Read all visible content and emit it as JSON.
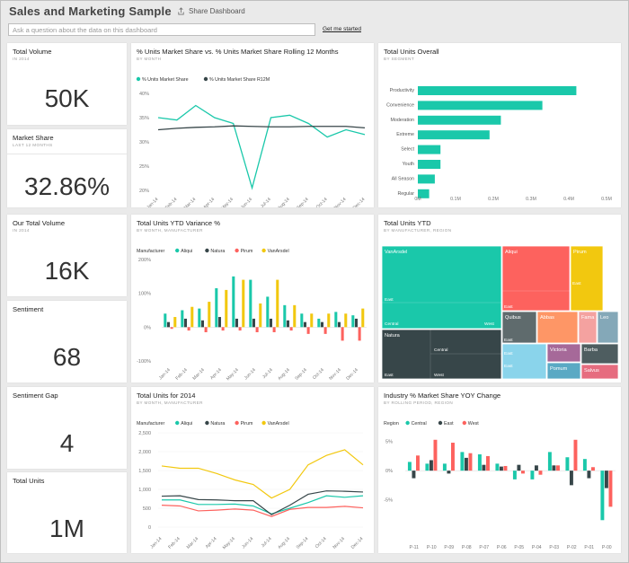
{
  "header": {
    "title": "Sales and Marketing Sample",
    "share_label": "Share Dashboard",
    "qa_placeholder": "Ask a question about the data on this dashboard",
    "get_started": "Get me started"
  },
  "colors": {
    "teal": "#1ac8aa",
    "dark": "#374649",
    "red": "#fd625e",
    "yellow": "#f2c80f",
    "blue": "#8ad4eb",
    "orange": "#fe9666",
    "purple": "#a66999",
    "grey": "#5f6b6d"
  },
  "kpi": {
    "total_volume": {
      "title": "Total Volume",
      "subtitle": "IN 2014",
      "value": "50K"
    },
    "market_share": {
      "title": "Market Share",
      "subtitle": "LAST 12 MONTHS",
      "value": "32.86%"
    },
    "our_total_volume": {
      "title": "Our Total Volume",
      "subtitle": "IN 2014",
      "value": "16K"
    },
    "sentiment": {
      "title": "Sentiment",
      "value": "68"
    },
    "sentiment_gap": {
      "title": "Sentiment Gap",
      "value": "4"
    },
    "total_units": {
      "title": "Total Units",
      "value": "1M"
    }
  },
  "tiles": {
    "line1": {
      "title": "% Units Market Share vs. % Units Market Share Rolling 12 Months",
      "subtitle": "BY MONTH"
    },
    "bar_overall": {
      "title": "Total Units Overall",
      "subtitle": "BY SEGMENT"
    },
    "ytd_var": {
      "title": "Total Units YTD Variance %",
      "subtitle": "BY MONTH, MANUFACTURER"
    },
    "treemap": {
      "title": "Total Units YTD",
      "subtitle": "BY MANUFACTURER, REGION"
    },
    "units2014": {
      "title": "Total Units for 2014",
      "subtitle": "BY MONTH, MANUFACTURER"
    },
    "yoy": {
      "title": "Industry % Market Share YOY Change",
      "subtitle": "BY ROLLING PERIOD, REGION"
    }
  },
  "chart_data": [
    {
      "id": "line1",
      "type": "line",
      "categories": [
        "Jan-14",
        "Feb-14",
        "Mar-14",
        "Apr-14",
        "May-14",
        "Jun-14",
        "Jul-14",
        "Aug-14",
        "Sep-14",
        "Oct-14",
        "Nov-14",
        "Dec-14"
      ],
      "series": [
        {
          "name": "% Units Market Share",
          "color": "#1ac8aa",
          "values": [
            35,
            34.5,
            37.5,
            35,
            33.8,
            20.5,
            35,
            35.5,
            33.8,
            31,
            32.5,
            31.5
          ]
        },
        {
          "name": "% Units Market Share R12M",
          "color": "#374649",
          "values": [
            32.5,
            32.8,
            33,
            33.1,
            33.3,
            33.2,
            33.1,
            33.1,
            33.2,
            33.2,
            33.2,
            32.9
          ]
        }
      ],
      "y_ticks": [
        "40%",
        "35%",
        "30%",
        "25%",
        "20%"
      ],
      "ylim": [
        20,
        40
      ]
    },
    {
      "id": "bar_overall",
      "type": "bar",
      "categories": [
        "Productivity",
        "Convenience",
        "Moderation",
        "Extreme",
        "Select",
        "Youth",
        "All Season",
        "Regular"
      ],
      "values": [
        0.42,
        0.33,
        0.22,
        0.19,
        0.06,
        0.06,
        0.045,
        0.03
      ],
      "x_ticks": [
        "0M",
        "0.1M",
        "0.2M",
        "0.3M",
        "0.4M",
        "0.5M"
      ],
      "xlim": [
        0,
        0.5
      ]
    },
    {
      "id": "ytd_var",
      "type": "bar",
      "legend_title": "Manufacturer",
      "legend": [
        "Aliqui",
        "Natura",
        "Pirum",
        "VanArsdel"
      ],
      "categories": [
        "Jan-14",
        "Feb-14",
        "Mar-14",
        "Apr-14",
        "May-14",
        "Jun-14",
        "Jul-14",
        "Aug-14",
        "Sep-14",
        "Oct-14",
        "Nov-14",
        "Dec-14"
      ],
      "series": [
        {
          "name": "Aliqui",
          "values": [
            40,
            50,
            55,
            115,
            150,
            140,
            90,
            65,
            40,
            25,
            45,
            35
          ]
        },
        {
          "name": "Natura",
          "values": [
            15,
            25,
            20,
            30,
            25,
            25,
            25,
            20,
            15,
            15,
            15,
            25
          ]
        },
        {
          "name": "Pirum",
          "values": [
            -5,
            -10,
            -15,
            -10,
            -10,
            -15,
            -15,
            -10,
            -20,
            -20,
            -40,
            -40
          ]
        },
        {
          "name": "VanArsdel",
          "values": [
            30,
            60,
            75,
            110,
            140,
            70,
            140,
            65,
            40,
            40,
            40,
            55
          ]
        }
      ],
      "y_ticks": [
        "200%",
        "100%",
        "0%",
        "-100%"
      ],
      "ylim": [
        -100,
        200
      ]
    },
    {
      "id": "treemap",
      "type": "treemap",
      "nodes": [
        "VanArsdel",
        "Aliqui",
        "Pirum",
        "Natura",
        "Quibus",
        "Abbas",
        "Fama",
        "Leo",
        "Victoria",
        "Barba",
        "Pomum",
        "Salvus"
      ],
      "labels": [
        "Central",
        "West",
        "East"
      ]
    },
    {
      "id": "units2014",
      "type": "line",
      "legend_title": "Manufacturer",
      "legend": [
        "Aliqui",
        "Natura",
        "Pirum",
        "VanArsdel"
      ],
      "categories": [
        "Jan-14",
        "Feb-14",
        "Mar-14",
        "Apr-14",
        "May-14",
        "Jun-14",
        "Jul-14",
        "Aug-14",
        "Sep-14",
        "Oct-14",
        "Nov-14",
        "Dec-14"
      ],
      "series": [
        {
          "name": "Aliqui",
          "values": [
            720,
            720,
            600,
            600,
            610,
            560,
            350,
            500,
            650,
            830,
            790,
            830
          ]
        },
        {
          "name": "Natura",
          "values": [
            820,
            830,
            730,
            720,
            700,
            700,
            330,
            580,
            870,
            960,
            950,
            930
          ]
        },
        {
          "name": "Pirum",
          "values": [
            580,
            560,
            430,
            450,
            480,
            450,
            280,
            470,
            520,
            520,
            550,
            510
          ]
        },
        {
          "name": "VanArsdel",
          "values": [
            1620,
            1560,
            1560,
            1420,
            1250,
            1130,
            770,
            1000,
            1650,
            1900,
            2050,
            1650
          ]
        }
      ],
      "y_ticks": [
        "2,500",
        "2,000",
        "1,500",
        "1,000",
        "500",
        "0"
      ],
      "ylim": [
        0,
        2500
      ]
    },
    {
      "id": "yoy",
      "type": "bar",
      "legend_title": "Region",
      "legend": [
        "Central",
        "East",
        "West"
      ],
      "categories": [
        "P-11",
        "P-10",
        "P-09",
        "P-08",
        "P-07",
        "P-06",
        "P-05",
        "P-04",
        "P-03",
        "P-02",
        "P-01",
        "P-00"
      ],
      "series": [
        {
          "name": "Central",
          "values": [
            1.5,
            1.2,
            1.2,
            3.2,
            2.8,
            1.2,
            -1.5,
            -1.5,
            3.2,
            2.3,
            2.0,
            -8.5
          ]
        },
        {
          "name": "East",
          "values": [
            -1.3,
            1.8,
            -0.5,
            2.2,
            1.0,
            0.7,
            1.0,
            0.9,
            0.9,
            -2.5,
            -1.3,
            -3.0
          ]
        },
        {
          "name": "West",
          "values": [
            2.6,
            5.3,
            4.8,
            3.0,
            2.5,
            0.8,
            -0.5,
            -0.7,
            0.9,
            5.3,
            0.6,
            -6.2
          ]
        }
      ],
      "y_ticks": [
        "5%",
        "0%",
        "-5%"
      ],
      "ylim": [
        -10,
        6.5
      ]
    }
  ]
}
